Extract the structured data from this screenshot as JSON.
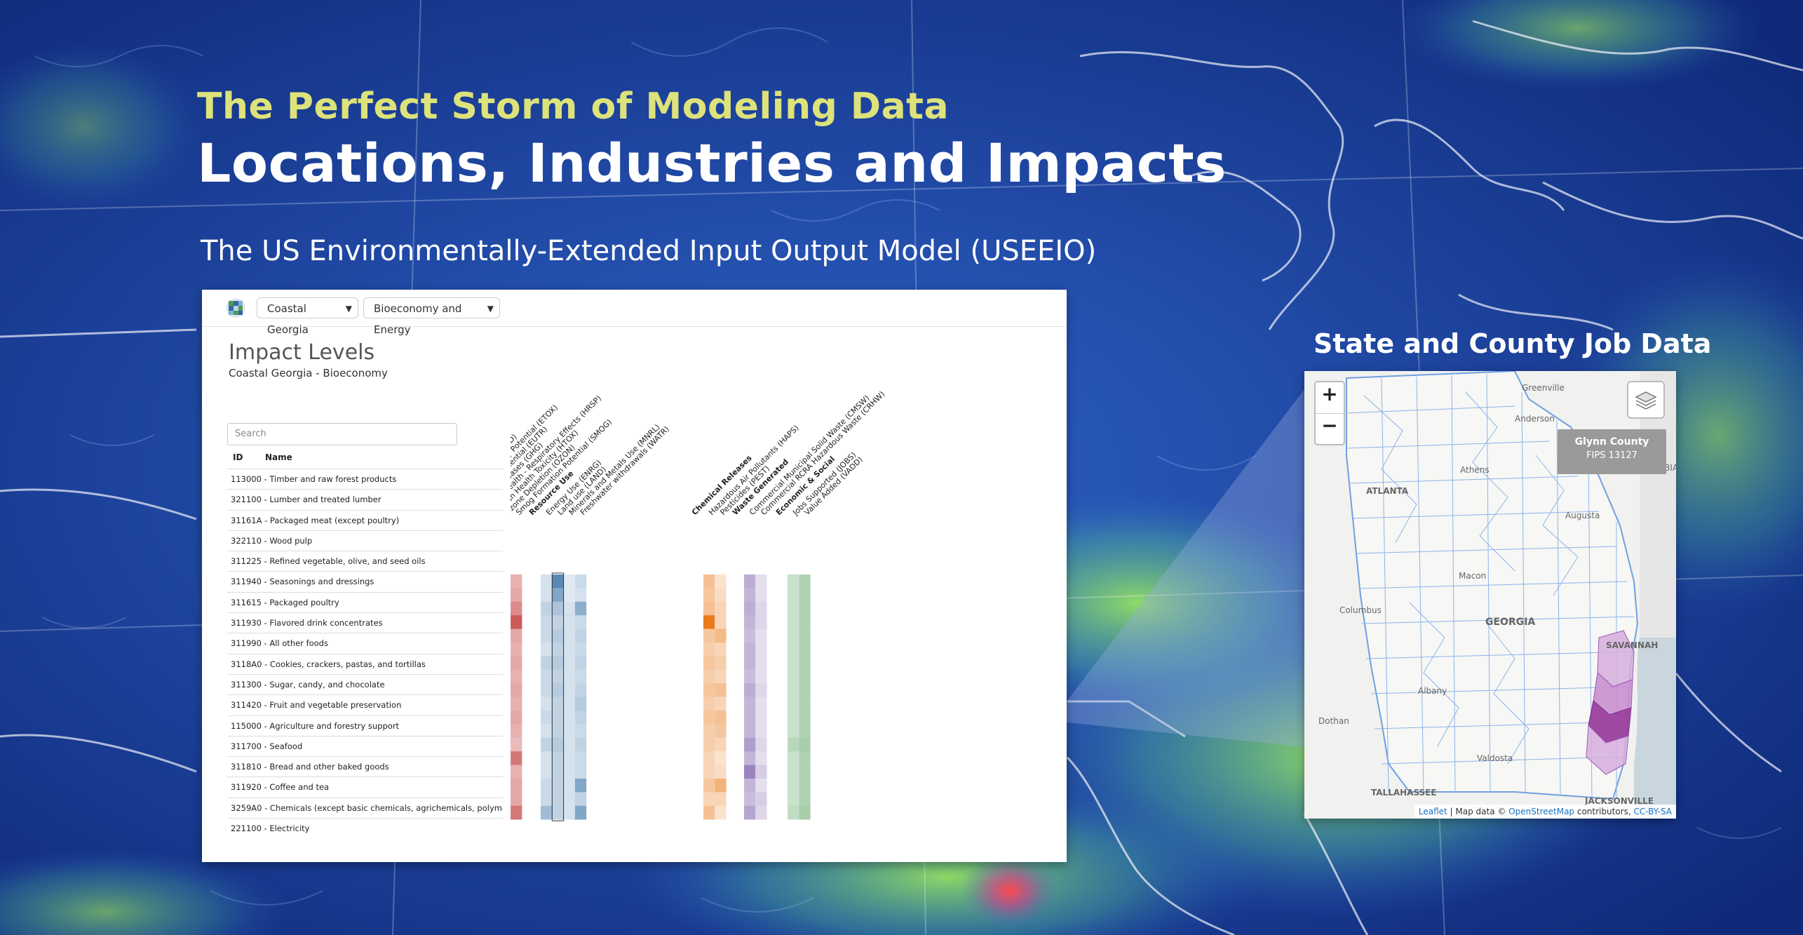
{
  "hero": {
    "kicker": "The Perfect Storm of Modeling Data",
    "title": "Locations, Industries and Impacts",
    "subtitle": "The US Environmentally-Extended Input Output Model (USEEIO)"
  },
  "app": {
    "location_select": "Coastal Georgia",
    "sector_select": "Bioeconomy and Energy",
    "panel_title": "Impact Levels",
    "panel_subtitle": "Coastal Georgia - Bioeconomy",
    "search_placeholder": "Search",
    "col_id": "ID",
    "col_name": "Name",
    "rows": [
      "113000 - Timber and raw forest products",
      "321100 - Lumber and treated lumber",
      "31161A - Packaged meat (except poultry)",
      "322110 - Wood pulp",
      "311225 - Refined vegetable, olive, and seed oils",
      "311940 - Seasonings and dressings",
      "311615 - Packaged poultry",
      "311930 - Flavored drink concentrates",
      "311990 - All other foods",
      "3118A0 - Cookies, crackers, pastas, and tortillas",
      "311300 - Sugar, candy, and chocolate",
      "311420 - Fruit and vegetable preservation",
      "115000 - Agriculture and forestry support",
      "311700 - Seafood",
      "311810 - Bread and other baked goods",
      "311920 - Coffee and tea",
      "3259A0 - Chemicals (except basic chemicals, agrichemicals, polymers, paints",
      "221100 - Electricity"
    ],
    "impact_groups": [
      {
        "name": "Impact Potential",
        "color": "#c43c3c",
        "indicators": [
          "Acidification Potential (ACID)",
          "Freshwater Ecotoxicity Potential (ETOX)",
          "Eutrophication Potential (EUTR)",
          "Greenhouse Gases (GHG)",
          "Human Health - Respiratory Effects (HRSP)",
          "Human Health Toxicity (HTOX)",
          "Ozone Depletion (OZON)",
          "Smog Formation Potential (SMOG)"
        ]
      },
      {
        "name": "Resource Use",
        "color": "#2f6aa3",
        "indicators": [
          "Energy Use (ENRG)",
          "Land use (LAND)",
          "Minerals and Metals Use (MNRL)",
          "Freshwater withdrawals (WATR)"
        ]
      },
      {
        "name": "Chemical Releases",
        "color": "#e8740e",
        "indicators": [
          "Hazardous Air Pollutants (HAPS)",
          "Pesticides (PEST)"
        ]
      },
      {
        "name": "Waste Generated",
        "color": "#7a5ba8",
        "indicators": [
          "Commercial Municipal Solid Waste (CMSW)",
          "Commercial RCRA Hazardous Waste (CRHW)"
        ]
      },
      {
        "name": "Economic & Social",
        "color": "#4f9a55",
        "indicators": [
          "Jobs Supported (JOBS)",
          "Value Added (VADD)"
        ]
      }
    ],
    "heatmap": {
      "impact": [
        [
          0.4,
          0.5,
          0.3,
          0.45,
          0.6,
          0.35,
          0.3,
          0.4
        ],
        [
          0.45,
          0.5,
          0.35,
          0.5,
          0.55,
          0.4,
          0.35,
          0.45
        ],
        [
          0.7,
          0.55,
          0.4,
          0.75,
          0.95,
          0.45,
          0.4,
          0.6
        ],
        [
          0.4,
          0.45,
          0.3,
          0.55,
          0.6,
          0.35,
          0.3,
          0.85
        ],
        [
          0.5,
          0.9,
          0.4,
          0.6,
          0.65,
          0.4,
          0.35,
          0.45
        ],
        [
          0.45,
          0.55,
          0.35,
          0.5,
          0.6,
          0.4,
          0.35,
          0.4
        ],
        [
          0.75,
          0.5,
          0.4,
          0.55,
          0.65,
          0.45,
          0.4,
          0.45
        ],
        [
          0.5,
          0.55,
          0.35,
          0.5,
          0.6,
          0.4,
          0.35,
          0.4
        ],
        [
          0.55,
          0.6,
          0.4,
          0.55,
          0.6,
          0.4,
          0.35,
          0.45
        ],
        [
          0.5,
          0.55,
          0.35,
          0.5,
          0.7,
          0.4,
          0.35,
          0.4
        ],
        [
          0.5,
          0.55,
          0.35,
          0.55,
          0.6,
          0.4,
          0.35,
          0.45
        ],
        [
          0.5,
          0.55,
          0.35,
          0.5,
          0.6,
          0.4,
          0.35,
          0.4
        ],
        [
          0.45,
          0.5,
          0.3,
          0.45,
          0.55,
          0.35,
          0.3,
          0.35
        ],
        [
          0.65,
          0.5,
          0.4,
          0.5,
          0.75,
          0.4,
          0.4,
          0.7
        ],
        [
          0.45,
          0.5,
          0.35,
          0.5,
          0.55,
          0.4,
          0.35,
          0.4
        ],
        [
          0.5,
          0.8,
          0.35,
          0.5,
          0.55,
          0.4,
          0.35,
          0.45
        ],
        [
          0.5,
          0.55,
          0.35,
          0.5,
          0.6,
          0.4,
          0.35,
          0.45
        ],
        [
          0.6,
          0.55,
          0.4,
          0.95,
          0.65,
          0.45,
          0.5,
          0.7
        ]
      ],
      "resource": [
        [
          0.2,
          0.8,
          0.15,
          0.25
        ],
        [
          0.2,
          0.6,
          0.15,
          0.2
        ],
        [
          0.3,
          0.4,
          0.2,
          0.55
        ],
        [
          0.25,
          0.3,
          0.2,
          0.25
        ],
        [
          0.25,
          0.35,
          0.2,
          0.3
        ],
        [
          0.2,
          0.3,
          0.2,
          0.25
        ],
        [
          0.3,
          0.35,
          0.2,
          0.3
        ],
        [
          0.25,
          0.3,
          0.2,
          0.25
        ],
        [
          0.25,
          0.35,
          0.2,
          0.3
        ],
        [
          0.2,
          0.3,
          0.2,
          0.35
        ],
        [
          0.25,
          0.3,
          0.2,
          0.3
        ],
        [
          0.2,
          0.3,
          0.2,
          0.25
        ],
        [
          0.3,
          0.35,
          0.2,
          0.3
        ],
        [
          0.2,
          0.3,
          0.2,
          0.25
        ],
        [
          0.2,
          0.3,
          0.2,
          0.25
        ],
        [
          0.25,
          0.3,
          0.2,
          0.6
        ],
        [
          0.25,
          0.3,
          0.2,
          0.3
        ],
        [
          0.45,
          0.3,
          0.2,
          0.6
        ]
      ],
      "chemical": [
        [
          0.45,
          0.2
        ],
        [
          0.4,
          0.25
        ],
        [
          0.45,
          0.3
        ],
        [
          0.95,
          0.3
        ],
        [
          0.4,
          0.5
        ],
        [
          0.35,
          0.3
        ],
        [
          0.4,
          0.35
        ],
        [
          0.35,
          0.3
        ],
        [
          0.4,
          0.45
        ],
        [
          0.35,
          0.3
        ],
        [
          0.4,
          0.45
        ],
        [
          0.35,
          0.4
        ],
        [
          0.35,
          0.3
        ],
        [
          0.3,
          0.2
        ],
        [
          0.3,
          0.25
        ],
        [
          0.4,
          0.55
        ],
        [
          0.3,
          0.3
        ],
        [
          0.45,
          0.2
        ]
      ],
      "waste": [
        [
          0.5,
          0.2
        ],
        [
          0.45,
          0.2
        ],
        [
          0.5,
          0.25
        ],
        [
          0.45,
          0.25
        ],
        [
          0.4,
          0.2
        ],
        [
          0.45,
          0.2
        ],
        [
          0.45,
          0.2
        ],
        [
          0.4,
          0.2
        ],
        [
          0.5,
          0.25
        ],
        [
          0.45,
          0.2
        ],
        [
          0.45,
          0.2
        ],
        [
          0.45,
          0.2
        ],
        [
          0.6,
          0.25
        ],
        [
          0.45,
          0.2
        ],
        [
          0.75,
          0.3
        ],
        [
          0.45,
          0.2
        ],
        [
          0.4,
          0.3
        ],
        [
          0.55,
          0.25
        ]
      ],
      "econ": [
        [
          0.3,
          0.45
        ],
        [
          0.3,
          0.45
        ],
        [
          0.3,
          0.45
        ],
        [
          0.3,
          0.45
        ],
        [
          0.3,
          0.45
        ],
        [
          0.3,
          0.45
        ],
        [
          0.3,
          0.45
        ],
        [
          0.3,
          0.45
        ],
        [
          0.3,
          0.45
        ],
        [
          0.3,
          0.45
        ],
        [
          0.3,
          0.45
        ],
        [
          0.3,
          0.45
        ],
        [
          0.4,
          0.5
        ],
        [
          0.3,
          0.45
        ],
        [
          0.3,
          0.45
        ],
        [
          0.3,
          0.45
        ],
        [
          0.3,
          0.45
        ],
        [
          0.35,
          0.5
        ]
      ]
    }
  },
  "map": {
    "title": "State and County Job Data",
    "zoom_in": "+",
    "zoom_out": "−",
    "tooltip_name": "Glynn County",
    "tooltip_fips": "FIPS 13127",
    "labels": [
      "Greenville",
      "Anderson",
      "Athens",
      "ATLANTA",
      "Augusta",
      "COLUMBIA",
      "Macon",
      "Columbus",
      "GEORGIA",
      "SAVANNAH",
      "Albany",
      "Dothan",
      "Valdosta",
      "TALLAHASSEE",
      "JACKSONVILLE"
    ],
    "attribution_leaflet": "Leaflet",
    "attribution_text": " | Map data © ",
    "attribution_osm": "OpenStreetMap",
    "attribution_contrib": " contributors, ",
    "attribution_license": "CC-BY-SA"
  }
}
